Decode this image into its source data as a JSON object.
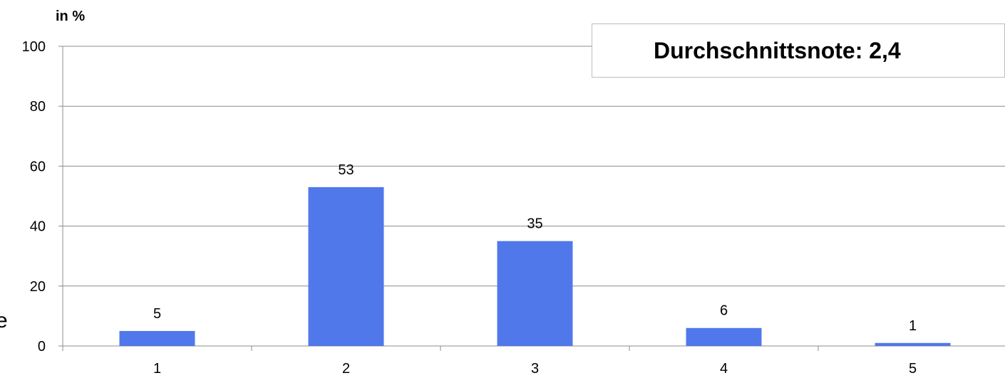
{
  "chart_data": {
    "type": "bar",
    "title": "",
    "xlabel": "",
    "ylabel": "in %",
    "categories": [
      "1",
      "2",
      "3",
      "4",
      "5"
    ],
    "values": [
      5,
      53,
      35,
      6,
      1
    ],
    "data_labels": [
      "5",
      "53",
      "35",
      "6",
      "1"
    ],
    "ylim": [
      0,
      100
    ],
    "yticks": [
      0,
      20,
      40,
      60,
      80,
      100
    ],
    "grid": "horizontal",
    "bar_color": "#5078ea",
    "annotation": "Durchschnittsnote: 2,4",
    "edge_fragment": "e"
  }
}
